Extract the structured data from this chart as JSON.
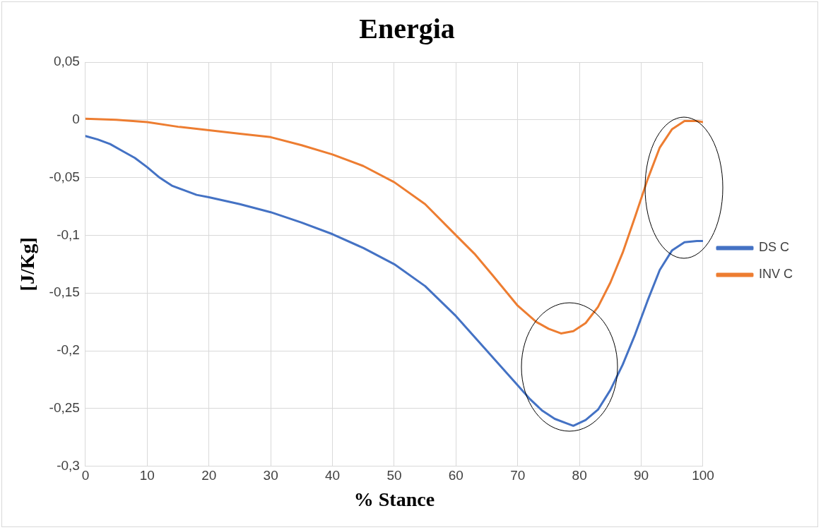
{
  "chart_data": {
    "type": "line",
    "title": "Energia",
    "xlabel": "% Stance",
    "ylabel": "[J/Kg]",
    "xlim": [
      0,
      100
    ],
    "xticks": [
      0,
      10,
      20,
      30,
      40,
      50,
      60,
      70,
      80,
      90,
      100
    ],
    "ylim": [
      -0.3,
      0.05
    ],
    "yticks": [
      {
        "value": -0.3,
        "label": "-0,3"
      },
      {
        "value": -0.25,
        "label": "-0,25"
      },
      {
        "value": -0.2,
        "label": "-0,2"
      },
      {
        "value": -0.15,
        "label": "-0,15"
      },
      {
        "value": -0.1,
        "label": "-0,1"
      },
      {
        "value": -0.05,
        "label": "-0,05"
      },
      {
        "value": 0,
        "label": "0"
      },
      {
        "value": 0.05,
        "label": "0,05"
      }
    ],
    "grid": true,
    "legend": "right",
    "marker": "none",
    "line_style": "solid",
    "series": [
      {
        "name": "DS C",
        "color": "#4472c4",
        "x": [
          0,
          2,
          4,
          6,
          8,
          10,
          12,
          14,
          16,
          18,
          20,
          25,
          30,
          35,
          40,
          45,
          50,
          55,
          60,
          65,
          70,
          72,
          74,
          76,
          78,
          79,
          81,
          83,
          85,
          87,
          89,
          91,
          93,
          95,
          97,
          99,
          100
        ],
        "values": [
          -0.014,
          -0.017,
          -0.021,
          -0.027,
          -0.033,
          -0.041,
          -0.05,
          -0.057,
          -0.061,
          -0.065,
          -0.067,
          -0.073,
          -0.08,
          -0.089,
          -0.099,
          -0.111,
          -0.125,
          -0.144,
          -0.17,
          -0.2,
          -0.23,
          -0.242,
          -0.252,
          -0.259,
          -0.263,
          -0.265,
          -0.26,
          -0.251,
          -0.234,
          -0.212,
          -0.186,
          -0.157,
          -0.13,
          -0.113,
          -0.106,
          -0.105,
          -0.105
        ]
      },
      {
        "name": "INV C",
        "color": "#ed7d31",
        "x": [
          0,
          5,
          10,
          15,
          20,
          25,
          30,
          35,
          40,
          45,
          50,
          55,
          60,
          63,
          66,
          70,
          73,
          75,
          77,
          79,
          81,
          83,
          85,
          87,
          89,
          91,
          93,
          95,
          97,
          99,
          100
        ],
        "values": [
          0.001,
          0,
          -0.002,
          -0.006,
          -0.009,
          -0.012,
          -0.015,
          -0.022,
          -0.03,
          -0.04,
          -0.054,
          -0.073,
          -0.1,
          -0.116,
          -0.135,
          -0.161,
          -0.175,
          -0.181,
          -0.185,
          -0.183,
          -0.176,
          -0.162,
          -0.141,
          -0.115,
          -0.084,
          -0.052,
          -0.024,
          -0.008,
          -0.001,
          -0.001,
          -0.002
        ]
      }
    ]
  }
}
